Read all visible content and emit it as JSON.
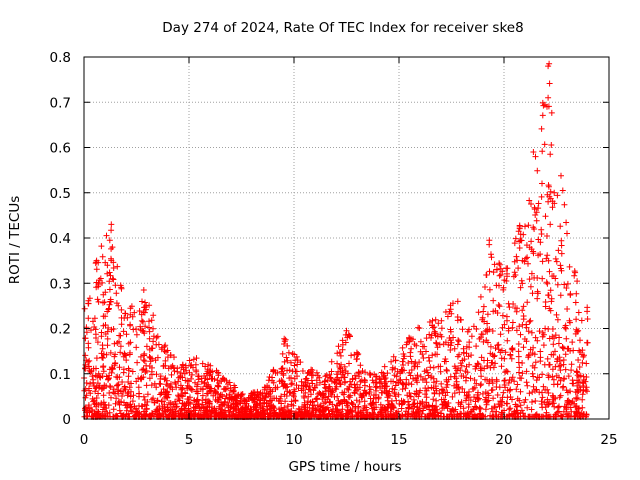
{
  "chart_data": {
    "type": "scatter",
    "title": "Day 274 of 2024, Rate Of TEC Index for receiver ske8",
    "xlabel": "GPS time / hours",
    "ylabel": "ROTI / TECUs",
    "xlim": [
      0,
      25
    ],
    "ylim": [
      0,
      0.8
    ],
    "xticks": [
      "0",
      "5",
      "10",
      "15",
      "20",
      "25"
    ],
    "yticks": [
      "0",
      "0.1",
      "0.2",
      "0.3",
      "0.4",
      "0.5",
      "0.6",
      "0.7",
      "0.8"
    ],
    "grid": true,
    "marker": "+",
    "series_color": "#ff0000",
    "envelope": [
      {
        "x": 0.0,
        "y": 0.25
      },
      {
        "x": 0.5,
        "y": 0.35
      },
      {
        "x": 1.3,
        "y": 0.43
      },
      {
        "x": 2.0,
        "y": 0.25
      },
      {
        "x": 2.9,
        "y": 0.29
      },
      {
        "x": 3.5,
        "y": 0.2
      },
      {
        "x": 4.5,
        "y": 0.12
      },
      {
        "x": 5.5,
        "y": 0.14
      },
      {
        "x": 6.5,
        "y": 0.1
      },
      {
        "x": 7.5,
        "y": 0.06
      },
      {
        "x": 8.5,
        "y": 0.06
      },
      {
        "x": 9.5,
        "y": 0.18
      },
      {
        "x": 10.5,
        "y": 0.12
      },
      {
        "x": 11.5,
        "y": 0.1
      },
      {
        "x": 12.5,
        "y": 0.2
      },
      {
        "x": 13.5,
        "y": 0.1
      },
      {
        "x": 14.5,
        "y": 0.12
      },
      {
        "x": 15.5,
        "y": 0.2
      },
      {
        "x": 16.5,
        "y": 0.22
      },
      {
        "x": 17.5,
        "y": 0.26
      },
      {
        "x": 18.5,
        "y": 0.2
      },
      {
        "x": 19.3,
        "y": 0.39
      },
      {
        "x": 20.0,
        "y": 0.33
      },
      {
        "x": 20.7,
        "y": 0.42
      },
      {
        "x": 21.5,
        "y": 0.59
      },
      {
        "x": 22.1,
        "y": 0.79
      },
      {
        "x": 22.8,
        "y": 0.51
      },
      {
        "x": 23.5,
        "y": 0.3
      },
      {
        "x": 24.0,
        "y": 0.25
      }
    ],
    "outliers": [
      {
        "x": 1.3,
        "y": 0.43
      },
      {
        "x": 1.35,
        "y": 0.38
      },
      {
        "x": 0.6,
        "y": 0.35
      },
      {
        "x": 2.85,
        "y": 0.285
      },
      {
        "x": 19.3,
        "y": 0.395
      },
      {
        "x": 20.7,
        "y": 0.415
      },
      {
        "x": 21.4,
        "y": 0.59
      },
      {
        "x": 21.5,
        "y": 0.58
      },
      {
        "x": 22.1,
        "y": 0.78
      },
      {
        "x": 22.15,
        "y": 0.785
      },
      {
        "x": 22.1,
        "y": 0.71
      },
      {
        "x": 22.05,
        "y": 0.69
      },
      {
        "x": 22.2,
        "y": 0.585
      },
      {
        "x": 22.8,
        "y": 0.505
      },
      {
        "x": 22.2,
        "y": 0.43
      },
      {
        "x": 22.1,
        "y": 0.48
      },
      {
        "x": 23.0,
        "y": 0.41
      },
      {
        "x": 12.5,
        "y": 0.195
      },
      {
        "x": 9.6,
        "y": 0.175
      },
      {
        "x": 17.8,
        "y": 0.26
      }
    ]
  }
}
